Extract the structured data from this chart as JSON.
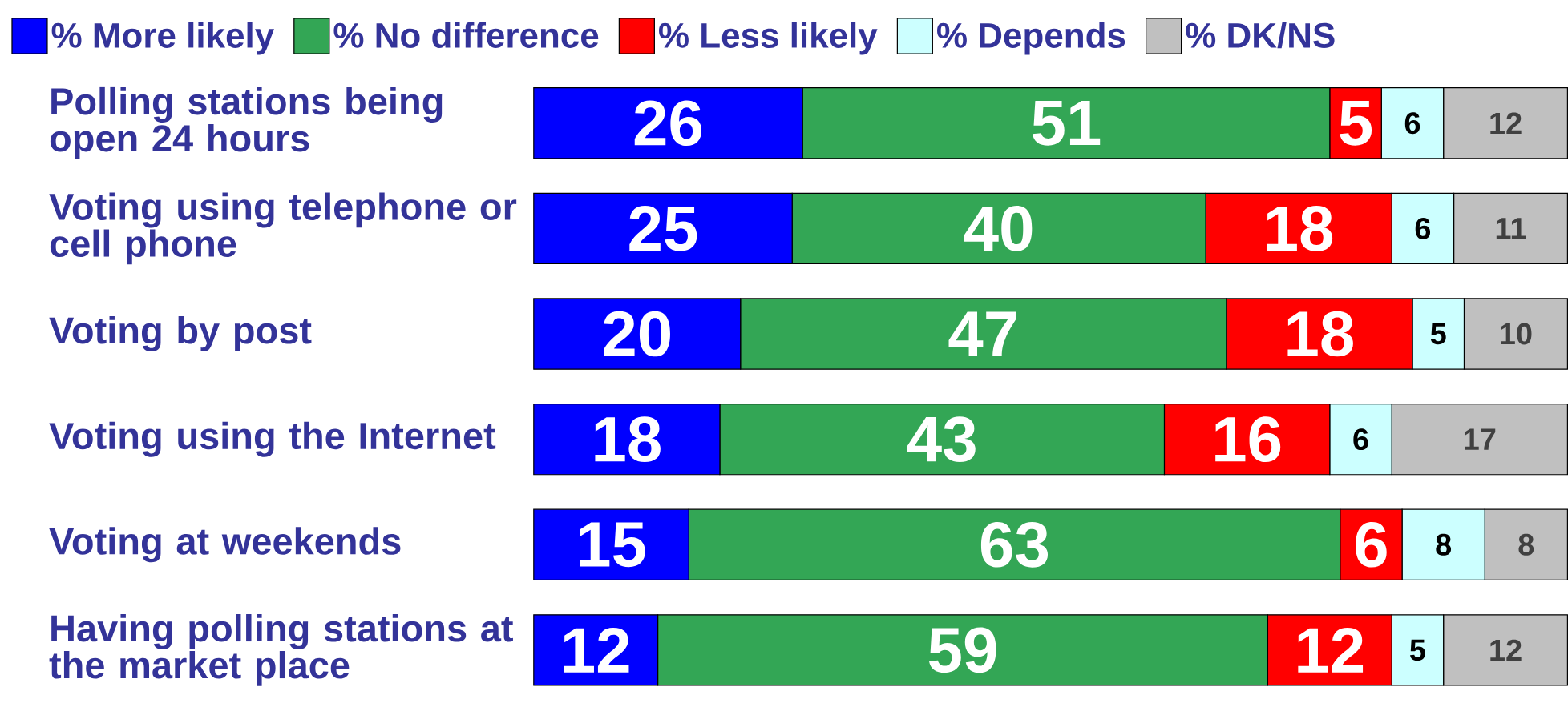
{
  "chart_data": {
    "type": "bar",
    "orientation": "horizontal",
    "stacked": true,
    "data_labels": true,
    "legend": "top",
    "categories": [
      "Polling stations being open 24 hours",
      "Voting using telephone or cell phone",
      "Voting by post",
      "Voting using the Internet",
      "Voting at weekends",
      "Having polling stations at the market place"
    ],
    "series": [
      {
        "name": "% More likely",
        "color": "#0000ff",
        "values": [
          26,
          25,
          20,
          18,
          15,
          12
        ]
      },
      {
        "name": "% No difference",
        "color": "#33a655",
        "values": [
          51,
          40,
          47,
          43,
          63,
          59
        ]
      },
      {
        "name": "% Less likely",
        "color": "#ff0000",
        "values": [
          5,
          18,
          18,
          16,
          6,
          12
        ]
      },
      {
        "name": "% Depends",
        "color": "#ccffff",
        "values": [
          6,
          6,
          5,
          6,
          8,
          5
        ]
      },
      {
        "name": "% DK/NS",
        "color": "#c0c0c0",
        "values": [
          12,
          11,
          10,
          17,
          8,
          12
        ]
      }
    ]
  }
}
